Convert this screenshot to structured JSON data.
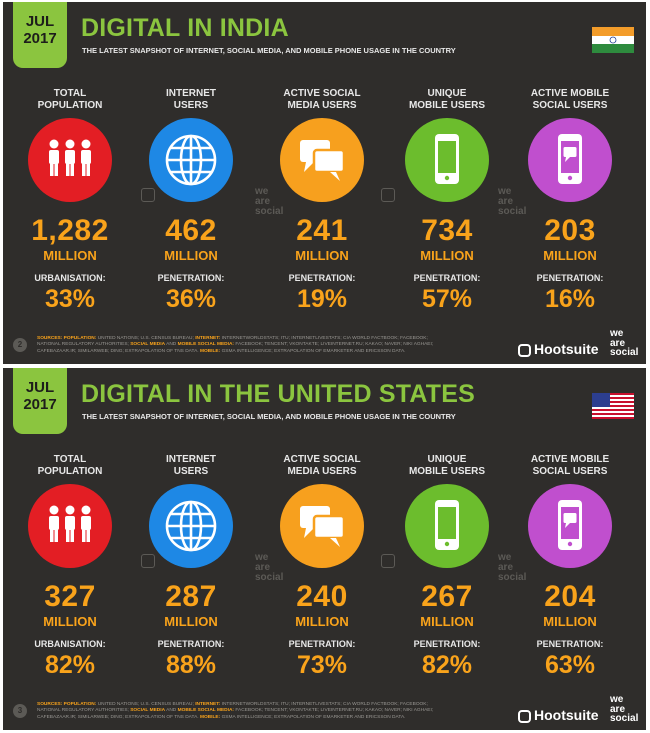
{
  "panels": [
    {
      "date_month": "JUL",
      "date_year": "2017",
      "title": "DIGITAL IN INDIA",
      "subtitle": "THE LATEST SNAPSHOT OF INTERNET, SOCIAL MEDIA, AND MOBILE PHONE USAGE IN THE COUNTRY",
      "flag": "india-flag",
      "page_number": "2",
      "stats": [
        {
          "label_1": "TOTAL",
          "label_2": "POPULATION",
          "value": "1,282",
          "unit": "MILLION",
          "sublabel": "URBANISATION:",
          "pct": "33%",
          "icon": "people-icon",
          "color": "#e31e24"
        },
        {
          "label_1": "INTERNET",
          "label_2": "USERS",
          "value": "462",
          "unit": "MILLION",
          "sublabel": "PENETRATION:",
          "pct": "36%",
          "icon": "globe-icon",
          "color": "#1e88e5"
        },
        {
          "label_1": "ACTIVE SOCIAL",
          "label_2": "MEDIA USERS",
          "value": "241",
          "unit": "MILLION",
          "sublabel": "PENETRATION:",
          "pct": "19%",
          "icon": "chat-bubbles-icon",
          "color": "#f7a01e"
        },
        {
          "label_1": "UNIQUE",
          "label_2": "MOBILE USERS",
          "value": "734",
          "unit": "MILLION",
          "sublabel": "PENETRATION:",
          "pct": "57%",
          "icon": "mobile-phone-icon",
          "color": "#6cbd2d"
        },
        {
          "label_1": "ACTIVE MOBILE",
          "label_2": "SOCIAL USERS",
          "value": "203",
          "unit": "MILLION",
          "sublabel": "PENETRATION:",
          "pct": "16%",
          "icon": "mobile-chat-icon",
          "color": "#c04fce"
        }
      ]
    },
    {
      "date_month": "JUL",
      "date_year": "2017",
      "title": "DIGITAL IN THE UNITED STATES",
      "subtitle": "THE LATEST SNAPSHOT OF INTERNET, SOCIAL MEDIA, AND MOBILE PHONE USAGE IN THE COUNTRY",
      "flag": "usa-flag",
      "page_number": "3",
      "stats": [
        {
          "label_1": "TOTAL",
          "label_2": "POPULATION",
          "value": "327",
          "unit": "MILLION",
          "sublabel": "URBANISATION:",
          "pct": "82%",
          "icon": "people-icon",
          "color": "#e31e24"
        },
        {
          "label_1": "INTERNET",
          "label_2": "USERS",
          "value": "287",
          "unit": "MILLION",
          "sublabel": "PENETRATION:",
          "pct": "88%",
          "icon": "globe-icon",
          "color": "#1e88e5"
        },
        {
          "label_1": "ACTIVE SOCIAL",
          "label_2": "MEDIA USERS",
          "value": "240",
          "unit": "MILLION",
          "sublabel": "PENETRATION:",
          "pct": "73%",
          "icon": "chat-bubbles-icon",
          "color": "#f7a01e"
        },
        {
          "label_1": "UNIQUE",
          "label_2": "MOBILE USERS",
          "value": "267",
          "unit": "MILLION",
          "sublabel": "PENETRATION:",
          "pct": "82%",
          "icon": "mobile-phone-icon",
          "color": "#6cbd2d"
        },
        {
          "label_1": "ACTIVE MOBILE",
          "label_2": "SOCIAL USERS",
          "value": "204",
          "unit": "MILLION",
          "sublabel": "PENETRATION:",
          "pct": "63%",
          "icon": "mobile-chat-icon",
          "color": "#c04fce"
        }
      ]
    }
  ],
  "footer": {
    "sources_label": "SOURCES:",
    "population_label": "POPULATION:",
    "sources_part1": "UNITED NATIONS; U.S. CENSUS BUREAU;",
    "internet_label": "INTERNET:",
    "sources_part2": "INTERNETWORLDSTATS; ITU; INTERNETLIVESTATS; CIA WORLD FACTBOOK; FACEBOOK; NATIONAL REGULATORY AUTHORITIES;",
    "social_label": "SOCIAL MEDIA",
    "sources_part3": "AND",
    "mobile_social_label": "MOBILE SOCIAL MEDIA:",
    "sources_part4": "FACEBOOK; TENCENT; VKONTAKTE; LIVEINTERNET.RU; KAKAO; NAVER; NIKI AGHAEI; CAFEBAZAAR.IR; SIMILARWEB; DING; EXTRAPOLATION OF TNS DATA.",
    "mobile_label": "MOBILE:",
    "sources_part5": "GSMA INTELLIGENCE; EXTRAPOLATION OF EMARKETER AND ERICSSON DATA.",
    "hootsuite": "Hootsuite",
    "we": "we",
    "are": "are",
    "social": "social"
  }
}
